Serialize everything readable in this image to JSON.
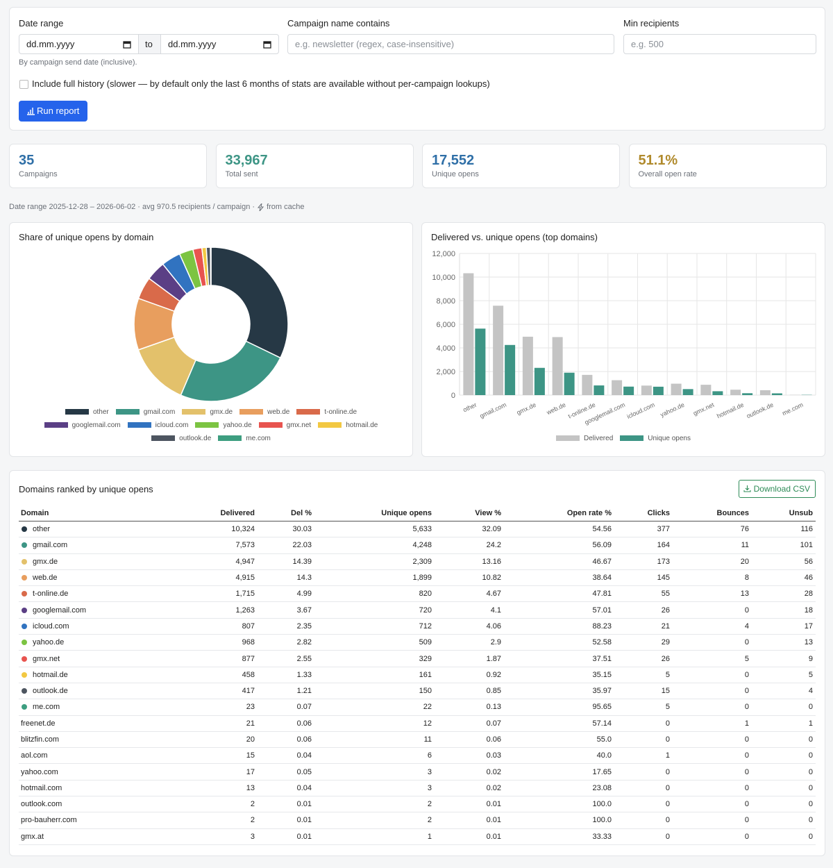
{
  "filters": {
    "date_label": "Date range",
    "date_from": "dd.mm.yyyy",
    "to": "to",
    "date_to": "dd.mm.yyyy",
    "date_hint": "By campaign send date (inclusive).",
    "campaign_label": "Campaign name contains",
    "campaign_placeholder": "e.g. newsletter (regex, case-insensitive)",
    "min_label": "Min recipients",
    "min_placeholder": "e.g. 500",
    "checkbox_label": "Include full history (slower — by default only the last 6 months of stats are available without per-campaign lookups)",
    "run_button": "Run report"
  },
  "stats": [
    {
      "value": "35",
      "label": "Campaigns",
      "color": "#2f6fa7"
    },
    {
      "value": "33,967",
      "label": "Total sent",
      "color": "#3d9585"
    },
    {
      "value": "17,552",
      "label": "Unique opens",
      "color": "#2f6fa7"
    },
    {
      "value": "51.1%",
      "label": "Overall open rate",
      "color": "#b08a2c"
    }
  ],
  "meta": {
    "summary": "Date range 2025-12-28 – 2026-06-02 · avg 970.5 recipients / campaign ·",
    "cache": "from cache"
  },
  "chart_data": [
    {
      "type": "doughnut",
      "title": "Share of unique opens by domain",
      "categories": [
        "other",
        "gmail.com",
        "gmx.de",
        "web.de",
        "t-online.de",
        "googlemail.com",
        "icloud.com",
        "yahoo.de",
        "gmx.net",
        "hotmail.de",
        "outlook.de",
        "me.com"
      ],
      "values": [
        5633,
        4248,
        2309,
        1899,
        820,
        720,
        712,
        509,
        329,
        161,
        150,
        22
      ],
      "colors": [
        "#263845",
        "#3d9585",
        "#e3c16b",
        "#e89e5e",
        "#d96a4a",
        "#5b3f85",
        "#3173c0",
        "#7cc442",
        "#e8544f",
        "#f2c842",
        "#4d5560",
        "#3d9e80"
      ],
      "legend": "bottom"
    },
    {
      "type": "bar",
      "title": "Delivered vs. unique opens (top domains)",
      "categories": [
        "other",
        "gmail.com",
        "gmx.de",
        "web.de",
        "t-online.de",
        "googlemail.com",
        "icloud.com",
        "yahoo.de",
        "gmx.net",
        "hotmail.de",
        "outlook.de",
        "me.com"
      ],
      "series": [
        {
          "name": "Delivered",
          "color": "#c4c4c4",
          "values": [
            10324,
            7573,
            4947,
            4915,
            1715,
            1263,
            807,
            968,
            877,
            458,
            417,
            23
          ]
        },
        {
          "name": "Unique opens",
          "color": "#3d9585",
          "values": [
            5633,
            4248,
            2309,
            1899,
            820,
            720,
            712,
            509,
            329,
            161,
            150,
            22
          ]
        }
      ],
      "ylim": [
        0,
        12000
      ],
      "yticks": [
        0,
        {
          "value": 2000,
          "label": "2,000"
        },
        {
          "value": 4000,
          "label": "4,000"
        },
        {
          "value": 6000,
          "label": "6,000"
        },
        {
          "value": 8000,
          "label": "8,000"
        },
        {
          "value": 10000,
          "label": "10,000"
        },
        {
          "value": 12000,
          "label": "12,000"
        }
      ],
      "grid": true,
      "legend": "bottom"
    }
  ],
  "table": {
    "title": "Domains ranked by unique opens",
    "download": "Download CSV",
    "columns": [
      "Domain",
      "Delivered",
      "Del %",
      "Unique opens",
      "View %",
      "Open rate %",
      "Clicks",
      "Bounces",
      "Unsub"
    ],
    "rows": [
      [
        "other",
        "10,324",
        "30.03",
        "5,633",
        "32.09",
        "54.56",
        "377",
        "76",
        "116"
      ],
      [
        "gmail.com",
        "7,573",
        "22.03",
        "4,248",
        "24.2",
        "56.09",
        "164",
        "11",
        "101"
      ],
      [
        "gmx.de",
        "4,947",
        "14.39",
        "2,309",
        "13.16",
        "46.67",
        "173",
        "20",
        "56"
      ],
      [
        "web.de",
        "4,915",
        "14.3",
        "1,899",
        "10.82",
        "38.64",
        "145",
        "8",
        "46"
      ],
      [
        "t-online.de",
        "1,715",
        "4.99",
        "820",
        "4.67",
        "47.81",
        "55",
        "13",
        "28"
      ],
      [
        "googlemail.com",
        "1,263",
        "3.67",
        "720",
        "4.1",
        "57.01",
        "26",
        "0",
        "18"
      ],
      [
        "icloud.com",
        "807",
        "2.35",
        "712",
        "4.06",
        "88.23",
        "21",
        "4",
        "17"
      ],
      [
        "yahoo.de",
        "968",
        "2.82",
        "509",
        "2.9",
        "52.58",
        "29",
        "0",
        "13"
      ],
      [
        "gmx.net",
        "877",
        "2.55",
        "329",
        "1.87",
        "37.51",
        "26",
        "5",
        "9"
      ],
      [
        "hotmail.de",
        "458",
        "1.33",
        "161",
        "0.92",
        "35.15",
        "5",
        "0",
        "5"
      ],
      [
        "outlook.de",
        "417",
        "1.21",
        "150",
        "0.85",
        "35.97",
        "15",
        "0",
        "4"
      ],
      [
        "me.com",
        "23",
        "0.07",
        "22",
        "0.13",
        "95.65",
        "5",
        "0",
        "0"
      ],
      [
        "freenet.de",
        "21",
        "0.06",
        "12",
        "0.07",
        "57.14",
        "0",
        "1",
        "1"
      ],
      [
        "blitzfin.com",
        "20",
        "0.06",
        "11",
        "0.06",
        "55.0",
        "0",
        "0",
        "0"
      ],
      [
        "aol.com",
        "15",
        "0.04",
        "6",
        "0.03",
        "40.0",
        "1",
        "0",
        "0"
      ],
      [
        "yahoo.com",
        "17",
        "0.05",
        "3",
        "0.02",
        "17.65",
        "0",
        "0",
        "0"
      ],
      [
        "hotmail.com",
        "13",
        "0.04",
        "3",
        "0.02",
        "23.08",
        "0",
        "0",
        "0"
      ],
      [
        "outlook.com",
        "2",
        "0.01",
        "2",
        "0.01",
        "100.0",
        "0",
        "0",
        "0"
      ],
      [
        "pro-bauherr.com",
        "2",
        "0.01",
        "2",
        "0.01",
        "100.0",
        "0",
        "0",
        "0"
      ],
      [
        "gmx.at",
        "3",
        "0.01",
        "1",
        "0.01",
        "33.33",
        "0",
        "0",
        "0"
      ]
    ]
  }
}
